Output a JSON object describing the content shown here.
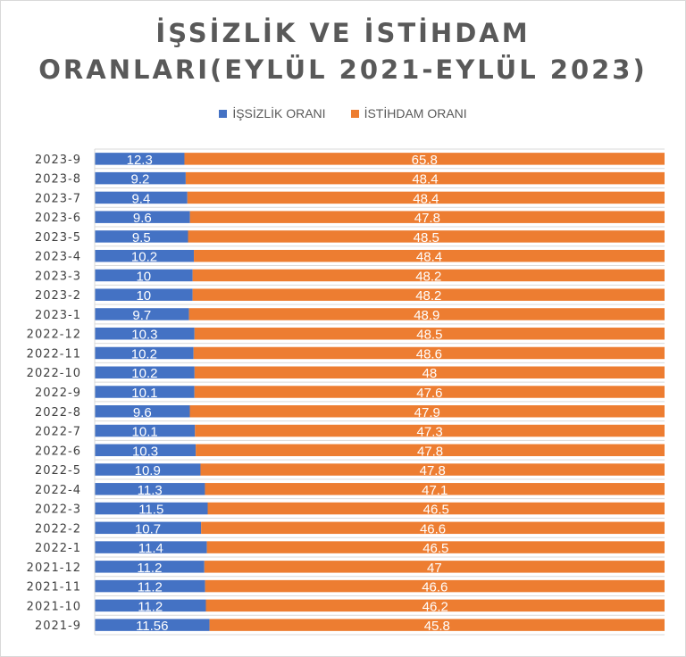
{
  "title_line1": "İŞSİZLİK VE İSTİHDAM",
  "title_line2": "ORANLARI(EYLÜL 2021-EYLÜL 2023)",
  "colors": {
    "unemployment": "#4472c4",
    "employment": "#ed7d31"
  },
  "chart_data": {
    "type": "bar",
    "orientation": "horizontal",
    "stacking": "percent",
    "legend_position": "top",
    "grid": true,
    "categories": [
      "2023-9",
      "2023-8",
      "2023-7",
      "2023-6",
      "2023-5",
      "2023-4",
      "2023-3",
      "2023-2",
      "2023-1",
      "2022-12",
      "2022-11",
      "2022-10",
      "2022-9",
      "2022-8",
      "2022-7",
      "2022-6",
      "2022-5",
      "2022-4",
      "2022-3",
      "2022-2",
      "2022-1",
      "2021-12",
      "2021-11",
      "2021-10",
      "2021-9"
    ],
    "series": [
      {
        "name": "İŞSİZLİK ORANI",
        "values": [
          "12.3",
          "9.2",
          "9.4",
          "9.6",
          "9.5",
          "10.2",
          "10",
          "10",
          "9.7",
          "10.3",
          "10.2",
          "10.2",
          "10.1",
          "9.6",
          "10.1",
          "10.3",
          "10.9",
          "11.3",
          "11.5",
          "10.7",
          "11.4",
          "11.2",
          "11.2",
          "11.2",
          "11.56"
        ]
      },
      {
        "name": "İSTİHDAM ORANI",
        "values": [
          "65.8",
          "48.4",
          "48.4",
          "47.8",
          "48.5",
          "48.4",
          "48.2",
          "48.2",
          "48.9",
          "48.5",
          "48.6",
          "48",
          "47.6",
          "47.9",
          "47.3",
          "47.8",
          "47.8",
          "47.1",
          "46.5",
          "46.6",
          "46.5",
          "47",
          "46.6",
          "46.2",
          "45.8"
        ]
      }
    ]
  }
}
